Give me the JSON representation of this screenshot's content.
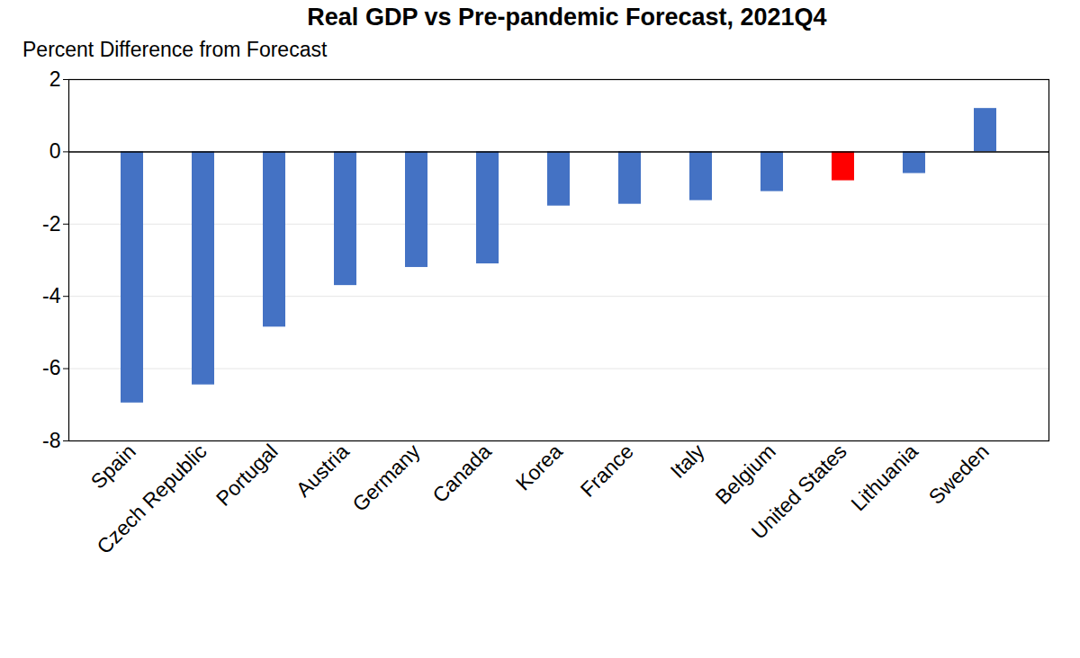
{
  "chart_data": {
    "type": "bar",
    "title": "Real GDP vs Pre-pandemic Forecast, 2021Q4",
    "y_label": "Percent Difference from Forecast",
    "categories": [
      "Spain",
      "Czech Republic",
      "Portugal",
      "Austria",
      "Germany",
      "Canada",
      "Korea",
      "France",
      "Italy",
      "Belgium",
      "United States",
      "Lithuania",
      "Sweden"
    ],
    "values": [
      -6.95,
      -6.45,
      -4.85,
      -3.7,
      -3.2,
      -3.1,
      -1.5,
      -1.45,
      -1.35,
      -1.1,
      -0.8,
      -0.6,
      1.2
    ],
    "colors": [
      "#4472c4",
      "#4472c4",
      "#4472c4",
      "#4472c4",
      "#4472c4",
      "#4472c4",
      "#4472c4",
      "#4472c4",
      "#4472c4",
      "#4472c4",
      "#ff0000",
      "#4472c4",
      "#4472c4"
    ],
    "ylim": [
      -8,
      2
    ],
    "yticks": [
      -8,
      -6,
      -4,
      -2,
      0,
      2
    ],
    "grid": true
  }
}
